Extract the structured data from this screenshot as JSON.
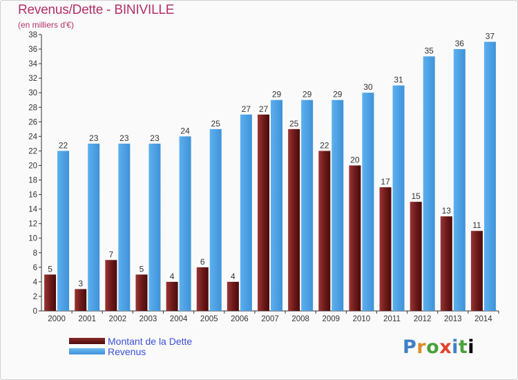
{
  "chart_data": {
    "type": "bar",
    "title": "Revenus/Dette - BINIVILLE",
    "subtitle": "(en milliers d'€)",
    "categories": [
      "2000",
      "2001",
      "2002",
      "2003",
      "2004",
      "2005",
      "2006",
      "2007",
      "2008",
      "2009",
      "2010",
      "2011",
      "2012",
      "2013",
      "2014"
    ],
    "series": [
      {
        "name": "Montant de la Dette",
        "color": "#6b1a1a",
        "values": [
          5,
          3,
          7,
          5,
          4,
          6,
          4,
          27,
          25,
          22,
          20,
          17,
          15,
          13,
          11
        ]
      },
      {
        "name": "Revenus",
        "color": "#4a9ee0",
        "values": [
          22,
          23,
          23,
          23,
          24,
          25,
          27,
          29,
          29,
          29,
          30,
          31,
          35,
          36,
          37
        ]
      }
    ],
    "ylim": [
      0,
      38
    ],
    "yticks": [
      "0",
      "2",
      "4",
      "6",
      "8",
      "10",
      "12",
      "14",
      "16",
      "18",
      "20",
      "22",
      "24",
      "26",
      "28",
      "30",
      "32",
      "34",
      "36",
      "38"
    ],
    "grid": false,
    "legend_position": "bottom-left"
  },
  "logo": {
    "letters": [
      "P",
      "r",
      "o",
      "x",
      "i",
      "t",
      "i"
    ]
  }
}
